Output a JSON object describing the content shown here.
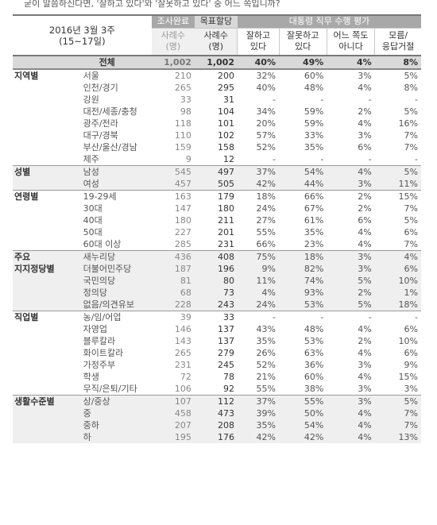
{
  "question": "굳이 말씀하신다면, '잘하고 있다'와 '잘못하고 있다' 중 어느 쪽입니까?",
  "header": {
    "period_line1": "2016년 3월 3주",
    "period_line2": "(15~17일)",
    "done_top": "조사완료",
    "done_sub_line1": "사례수",
    "done_sub_line2": "(명)",
    "target_top": "목표할당",
    "target_sub_line1": "사례수",
    "target_sub_line2": "(명)",
    "eval_top": "대통령 직무 수행 평가",
    "cols": [
      {
        "line1": "잘하고",
        "line2": "있다"
      },
      {
        "line1": "잘못하고",
        "line2": "있다"
      },
      {
        "line1": "어느 쪽도",
        "line2": "아니다"
      },
      {
        "line1": "모름/",
        "line2": "응답거절"
      }
    ]
  },
  "total": {
    "label": "전체",
    "done": "1,002",
    "target": "1,002",
    "good": "40%",
    "bad": "49%",
    "neither": "4%",
    "dk": "8%"
  },
  "groups": [
    {
      "name": "지역별",
      "shade": false,
      "rows": [
        {
          "label": "서울",
          "done": "210",
          "target": "200",
          "good": "32%",
          "bad": "60%",
          "neither": "3%",
          "dk": "5%"
        },
        {
          "label": "인천/경기",
          "done": "265",
          "target": "295",
          "good": "40%",
          "bad": "48%",
          "neither": "4%",
          "dk": "8%"
        },
        {
          "label": "강원",
          "done": "33",
          "target": "31",
          "good": "-",
          "bad": "-",
          "neither": "-",
          "dk": "-"
        },
        {
          "label": "대전/세종/충청",
          "done": "98",
          "target": "104",
          "good": "34%",
          "bad": "59%",
          "neither": "2%",
          "dk": "5%"
        },
        {
          "label": "광주/전라",
          "done": "118",
          "target": "101",
          "good": "20%",
          "bad": "59%",
          "neither": "4%",
          "dk": "16%"
        },
        {
          "label": "대구/경북",
          "done": "110",
          "target": "102",
          "good": "57%",
          "bad": "33%",
          "neither": "3%",
          "dk": "7%"
        },
        {
          "label": "부산/울산/경남",
          "done": "159",
          "target": "158",
          "good": "52%",
          "bad": "35%",
          "neither": "6%",
          "dk": "7%"
        },
        {
          "label": "제주",
          "done": "9",
          "target": "12",
          "good": "-",
          "bad": "-",
          "neither": "-",
          "dk": "-"
        }
      ]
    },
    {
      "name": "성별",
      "shade": true,
      "rows": [
        {
          "label": "남성",
          "done": "545",
          "target": "497",
          "good": "37%",
          "bad": "54%",
          "neither": "4%",
          "dk": "5%"
        },
        {
          "label": "여성",
          "done": "457",
          "target": "505",
          "good": "42%",
          "bad": "44%",
          "neither": "3%",
          "dk": "11%"
        }
      ]
    },
    {
      "name": "연령별",
      "shade": false,
      "rows": [
        {
          "label": "19-29세",
          "done": "163",
          "target": "179",
          "good": "18%",
          "bad": "66%",
          "neither": "2%",
          "dk": "15%"
        },
        {
          "label": "30대",
          "done": "147",
          "target": "180",
          "good": "24%",
          "bad": "67%",
          "neither": "2%",
          "dk": "7%"
        },
        {
          "label": "40대",
          "done": "180",
          "target": "211",
          "good": "27%",
          "bad": "61%",
          "neither": "6%",
          "dk": "5%"
        },
        {
          "label": "50대",
          "done": "227",
          "target": "201",
          "good": "55%",
          "bad": "35%",
          "neither": "4%",
          "dk": "6%"
        },
        {
          "label": "60대 이상",
          "done": "285",
          "target": "231",
          "good": "66%",
          "bad": "23%",
          "neither": "4%",
          "dk": "7%"
        }
      ]
    },
    {
      "name": "주요 지지정당별",
      "shade": true,
      "rows": [
        {
          "label": "새누리당",
          "done": "436",
          "target": "408",
          "good": "75%",
          "bad": "18%",
          "neither": "3%",
          "dk": "4%"
        },
        {
          "label": "더불어민주당",
          "done": "187",
          "target": "196",
          "good": "9%",
          "bad": "82%",
          "neither": "3%",
          "dk": "6%"
        },
        {
          "label": "국민의당",
          "done": "81",
          "target": "80",
          "good": "11%",
          "bad": "74%",
          "neither": "5%",
          "dk": "10%"
        },
        {
          "label": "정의당",
          "done": "68",
          "target": "73",
          "good": "4%",
          "bad": "93%",
          "neither": "2%",
          "dk": "1%"
        },
        {
          "label": "없음/의견유보",
          "done": "228",
          "target": "243",
          "good": "24%",
          "bad": "53%",
          "neither": "5%",
          "dk": "18%"
        }
      ]
    },
    {
      "name": "직업별",
      "shade": false,
      "rows": [
        {
          "label": "농/임/어업",
          "done": "39",
          "target": "33",
          "good": "-",
          "bad": "-",
          "neither": "-",
          "dk": "-"
        },
        {
          "label": "자영업",
          "done": "146",
          "target": "137",
          "good": "43%",
          "bad": "48%",
          "neither": "4%",
          "dk": "6%"
        },
        {
          "label": "블루칼라",
          "done": "143",
          "target": "137",
          "good": "35%",
          "bad": "53%",
          "neither": "2%",
          "dk": "10%"
        },
        {
          "label": "화이트칼라",
          "done": "265",
          "target": "279",
          "good": "26%",
          "bad": "63%",
          "neither": "4%",
          "dk": "6%"
        },
        {
          "label": "가정주부",
          "done": "231",
          "target": "245",
          "good": "52%",
          "bad": "36%",
          "neither": "3%",
          "dk": "9%"
        },
        {
          "label": "학생",
          "done": "72",
          "target": "78",
          "good": "21%",
          "bad": "60%",
          "neither": "4%",
          "dk": "15%"
        },
        {
          "label": "무직/은퇴/기타",
          "done": "106",
          "target": "92",
          "good": "55%",
          "bad": "38%",
          "neither": "3%",
          "dk": "3%"
        }
      ]
    },
    {
      "name": "생활수준별",
      "shade": true,
      "rows": [
        {
          "label": "상/중상",
          "done": "107",
          "target": "112",
          "good": "37%",
          "bad": "55%",
          "neither": "3%",
          "dk": "5%"
        },
        {
          "label": "중",
          "done": "458",
          "target": "473",
          "good": "39%",
          "bad": "50%",
          "neither": "4%",
          "dk": "7%"
        },
        {
          "label": "중하",
          "done": "207",
          "target": "208",
          "good": "35%",
          "bad": "54%",
          "neither": "4%",
          "dk": "7%"
        },
        {
          "label": "하",
          "done": "195",
          "target": "176",
          "good": "42%",
          "bad": "42%",
          "neither": "4%",
          "dk": "13%"
        }
      ]
    }
  ]
}
